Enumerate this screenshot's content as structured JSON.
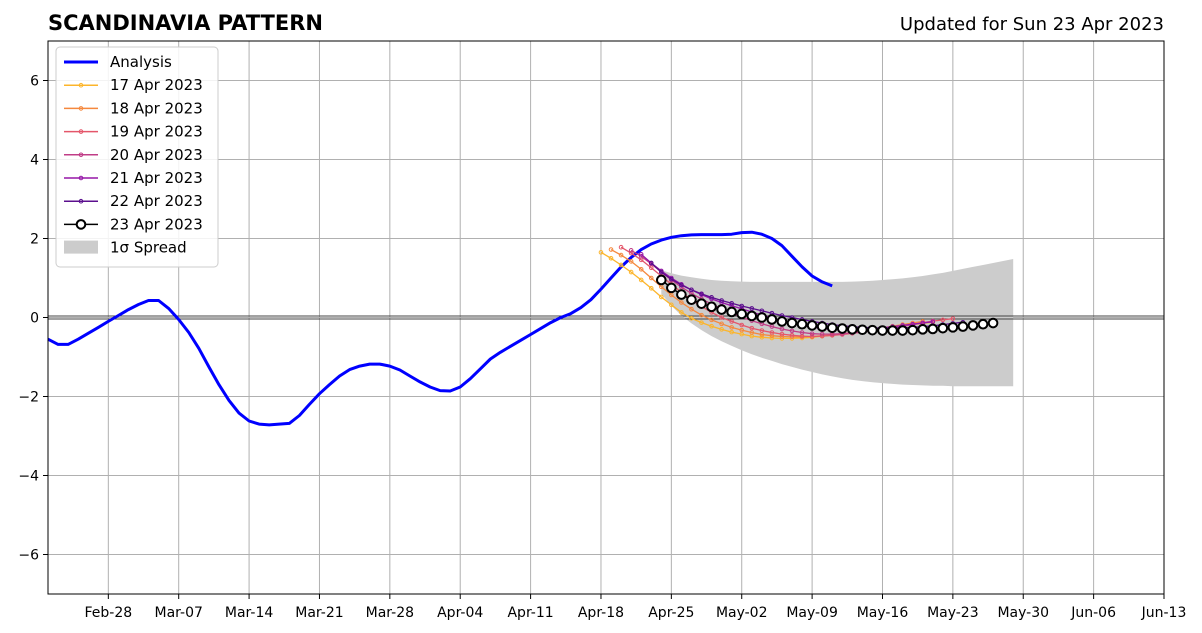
{
  "chart_data": {
    "type": "line",
    "title": "SCANDINAVIA PATTERN",
    "subtitle": "Updated for Sun 23 Apr 2023",
    "xlabel": "",
    "ylabel": "",
    "xlim": [
      "2023-02-22",
      "2023-06-13"
    ],
    "ylim": [
      -7,
      7
    ],
    "x_ticks": [
      "2023-02-28",
      "2023-03-07",
      "2023-03-14",
      "2023-03-21",
      "2023-03-28",
      "2023-04-04",
      "2023-04-11",
      "2023-04-18",
      "2023-04-25",
      "2023-05-02",
      "2023-05-09",
      "2023-05-16",
      "2023-05-23",
      "2023-05-30",
      "2023-06-06",
      "2023-06-13"
    ],
    "x_tick_labels": [
      "Feb-28",
      "Mar-07",
      "Mar-14",
      "Mar-21",
      "Mar-28",
      "Apr-04",
      "Apr-11",
      "Apr-18",
      "Apr-25",
      "May-02",
      "May-09",
      "May-16",
      "May-23",
      "May-30",
      "Jun-06",
      "Jun-13"
    ],
    "y_ticks": [
      -6,
      -4,
      -2,
      0,
      2,
      4,
      6
    ],
    "y_tick_labels": [
      "−6",
      "−4",
      "−2",
      "0",
      "2",
      "4",
      "6"
    ],
    "grid": true,
    "legend_position": "top-left",
    "colors": {
      "analysis": "#0000ff",
      "17 Apr 2023": "#fcb52b",
      "18 Apr 2023": "#f5883d",
      "19 Apr 2023": "#e4566a",
      "20 Apr 2023": "#c03d87",
      "21 Apr 2023": "#9517a7",
      "22 Apr 2023": "#5b0f8e",
      "23 Apr 2023": "#000000",
      "spread": "#cccccc",
      "grid": "#b0b0b0"
    },
    "analysis": {
      "name": "Analysis",
      "start": "2023-02-22",
      "values": [
        -0.55,
        -0.68,
        -0.68,
        -0.55,
        -0.4,
        -0.25,
        -0.1,
        0.05,
        0.2,
        0.33,
        0.43,
        0.43,
        0.23,
        -0.05,
        -0.38,
        -0.78,
        -1.25,
        -1.7,
        -2.1,
        -2.42,
        -2.62,
        -2.7,
        -2.72,
        -2.7,
        -2.68,
        -2.48,
        -2.2,
        -1.93,
        -1.7,
        -1.48,
        -1.32,
        -1.23,
        -1.18,
        -1.18,
        -1.23,
        -1.33,
        -1.48,
        -1.63,
        -1.76,
        -1.85,
        -1.86,
        -1.76,
        -1.55,
        -1.3,
        -1.05,
        -0.88,
        -0.73,
        -0.58,
        -0.43,
        -0.28,
        -0.13,
        0.0,
        0.1,
        0.25,
        0.45,
        0.72,
        1.0,
        1.28,
        1.52,
        1.72,
        1.86,
        1.96,
        2.03,
        2.07,
        2.09,
        2.1,
        2.1,
        2.1,
        2.11,
        2.15,
        2.16,
        2.11,
        2.0,
        1.82,
        1.55,
        1.28,
        1.05,
        0.9,
        0.8
      ]
    },
    "forecasts": [
      {
        "name": "17 Apr 2023",
        "start": "2023-04-18",
        "values": [
          1.65,
          1.5,
          1.33,
          1.15,
          0.95,
          0.74,
          0.52,
          0.32,
          0.13,
          -0.02,
          -0.13,
          -0.22,
          -0.3,
          -0.37,
          -0.42,
          -0.47,
          -0.5,
          -0.52,
          -0.53,
          -0.53,
          -0.52,
          -0.5,
          -0.47,
          -0.45,
          -0.42,
          -0.39,
          -0.36,
          -0.33,
          -0.3,
          -0.26,
          -0.22,
          -0.18,
          -0.15,
          -0.12
        ]
      },
      {
        "name": "18 Apr 2023",
        "start": "2023-04-19",
        "values": [
          1.72,
          1.58,
          1.42,
          1.22,
          1.0,
          0.78,
          0.57,
          0.38,
          0.21,
          0.06,
          -0.06,
          -0.16,
          -0.25,
          -0.32,
          -0.38,
          -0.43,
          -0.46,
          -0.48,
          -0.49,
          -0.49,
          -0.48,
          -0.46,
          -0.44,
          -0.41,
          -0.38,
          -0.34,
          -0.3,
          -0.26,
          -0.22,
          -0.18,
          -0.14,
          -0.1
        ]
      },
      {
        "name": "19 Apr 2023",
        "start": "2023-04-20",
        "values": [
          1.78,
          1.63,
          1.46,
          1.26,
          1.05,
          0.84,
          0.64,
          0.45,
          0.28,
          0.13,
          0.0,
          -0.1,
          -0.19,
          -0.27,
          -0.33,
          -0.38,
          -0.42,
          -0.45,
          -0.47,
          -0.48,
          -0.47,
          -0.45,
          -0.43,
          -0.4,
          -0.37,
          -0.33,
          -0.29,
          -0.25,
          -0.21,
          -0.17,
          -0.13,
          -0.09,
          -0.06,
          -0.03
        ]
      },
      {
        "name": "20 Apr 2023",
        "start": "2023-04-21",
        "values": [
          1.7,
          1.55,
          1.36,
          1.15,
          0.95,
          0.77,
          0.61,
          0.47,
          0.34,
          0.22,
          0.11,
          0.01,
          -0.08,
          -0.16,
          -0.23,
          -0.29,
          -0.34,
          -0.38,
          -0.41,
          -0.42,
          -0.42,
          -0.41,
          -0.39,
          -0.37,
          -0.34,
          -0.3,
          -0.26,
          -0.22,
          -0.18,
          -0.14,
          -0.1
        ]
      },
      {
        "name": "21 Apr 2023",
        "start": "2023-04-22",
        "values": [
          1.6,
          1.38,
          1.18,
          1.0,
          0.84,
          0.7,
          0.58,
          0.47,
          0.38,
          0.3,
          0.22,
          0.14,
          0.06,
          -0.01,
          -0.08,
          -0.14,
          -0.2,
          -0.24,
          -0.28,
          -0.3,
          -0.31,
          -0.31,
          -0.3,
          -0.28,
          -0.26,
          -0.23,
          -0.2,
          -0.17,
          -0.14,
          -0.11
        ]
      },
      {
        "name": "22 Apr 2023",
        "start": "2023-04-23",
        "values": [
          1.38,
          1.15,
          0.97,
          0.82,
          0.7,
          0.6,
          0.51,
          0.43,
          0.36,
          0.29,
          0.23,
          0.17,
          0.11,
          0.05,
          0.0,
          -0.05,
          -0.1,
          -0.14,
          -0.18,
          -0.21,
          -0.23,
          -0.25,
          -0.26,
          -0.27,
          -0.27,
          -0.26,
          -0.25,
          -0.23,
          -0.21,
          -0.18,
          -0.15,
          -0.12
        ]
      },
      {
        "name": "23 Apr 2023",
        "start": "2023-04-24",
        "values": [
          0.95,
          0.75,
          0.58,
          0.45,
          0.35,
          0.27,
          0.2,
          0.14,
          0.09,
          0.04,
          0.0,
          -0.05,
          -0.1,
          -0.14,
          -0.17,
          -0.2,
          -0.23,
          -0.26,
          -0.28,
          -0.3,
          -0.31,
          -0.32,
          -0.33,
          -0.33,
          -0.33,
          -0.32,
          -0.3,
          -0.29,
          -0.27,
          -0.25,
          -0.23,
          -0.2,
          -0.17,
          -0.14
        ]
      }
    ],
    "spread": {
      "name": "1σ Spread",
      "start": "2023-04-24",
      "upper": [
        1.2,
        1.12,
        1.06,
        1.02,
        0.98,
        0.95,
        0.93,
        0.92,
        0.91,
        0.9,
        0.9,
        0.9,
        0.9,
        0.9,
        0.9,
        0.9,
        0.9,
        0.9,
        0.9,
        0.91,
        0.92,
        0.93,
        0.95,
        0.97,
        0.99,
        1.02,
        1.05,
        1.09,
        1.13,
        1.18,
        1.23,
        1.28,
        1.33,
        1.38,
        1.43,
        1.48
      ],
      "lower": [
        0.6,
        0.3,
        0.05,
        -0.15,
        -0.32,
        -0.47,
        -0.6,
        -0.72,
        -0.83,
        -0.93,
        -1.02,
        -1.1,
        -1.18,
        -1.25,
        -1.32,
        -1.38,
        -1.44,
        -1.49,
        -1.54,
        -1.58,
        -1.61,
        -1.64,
        -1.66,
        -1.68,
        -1.7,
        -1.71,
        -1.72,
        -1.73,
        -1.73,
        -1.74,
        -1.74,
        -1.74,
        -1.74,
        -1.74,
        -1.74,
        -1.74
      ]
    },
    "legend": [
      "Analysis",
      "17 Apr 2023",
      "18 Apr 2023",
      "19 Apr 2023",
      "20 Apr 2023",
      "21 Apr 2023",
      "22 Apr 2023",
      "23 Apr 2023",
      "1σ Spread"
    ]
  }
}
